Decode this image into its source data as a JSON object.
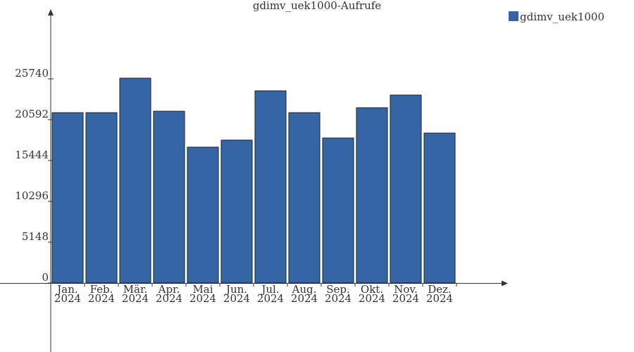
{
  "chart_data": {
    "type": "bar",
    "title": "gdimv_uek1000-Aufrufe",
    "categories": [
      "Jan. 2024",
      "Feb. 2024",
      "Mär. 2024",
      "Apr. 2024",
      "Mai 2024",
      "Jun. 2024",
      "Jul. 2024",
      "Aug. 2024",
      "Sep. 2024",
      "Okt. 2024",
      "Nov. 2024",
      "Dez. 2024"
    ],
    "series": [
      {
        "name": "gdimv_uek1000",
        "color": "#3465a4",
        "values": [
          21478,
          21478,
          25827,
          21656,
          17130,
          18017,
          24230,
          21478,
          18283,
          22100,
          23697,
          18904
        ]
      }
    ],
    "ylim": [
      -8700,
      34350
    ],
    "yticks": [
      0,
      5148,
      10296,
      15444,
      20592,
      25740
    ],
    "legend": "top-right"
  }
}
